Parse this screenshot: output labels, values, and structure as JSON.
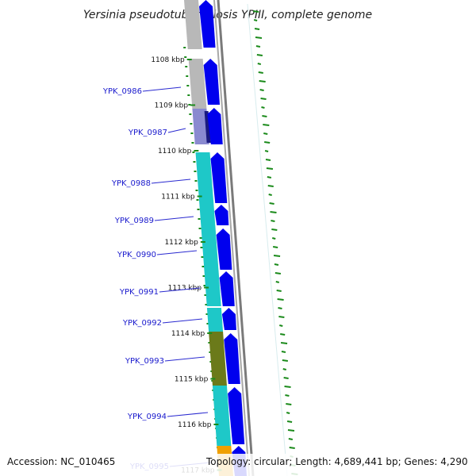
{
  "title": "Yersinia pseudotuberculosis YPIII, complete genome",
  "footer": {
    "accession": "Accession: NC_010465",
    "summary": "Topology: circular; Length: 4,689,441 bp; Genes: 4,290"
  },
  "kbp_labels": [
    "1108 kbp",
    "1109 kbp",
    "1110 kbp",
    "1111 kbp",
    "1112 kbp",
    "1113 kbp",
    "1114 kbp",
    "1115 kbp",
    "1116 kbp",
    "1117 kbp"
  ],
  "genes": [
    "YPK_0986",
    "YPK_0987",
    "YPK_0988",
    "YPK_0989",
    "YPK_0990",
    "YPK_0991",
    "YPK_0992",
    "YPK_0993",
    "YPK_0994",
    "YPK_0995"
  ],
  "colors": {
    "cds_arrow": "#0000ee",
    "cog_teal": "#1ec8c8",
    "cog_olive": "#6b7a1a",
    "cog_gray": "#b8b8b8",
    "cog_navy": "#1a1a80",
    "cog_lavender": "#8a8ad0",
    "cog_orange": "#f0a000",
    "gc_skew": "#1a8a1a",
    "backbone": "#8a8a8a"
  }
}
